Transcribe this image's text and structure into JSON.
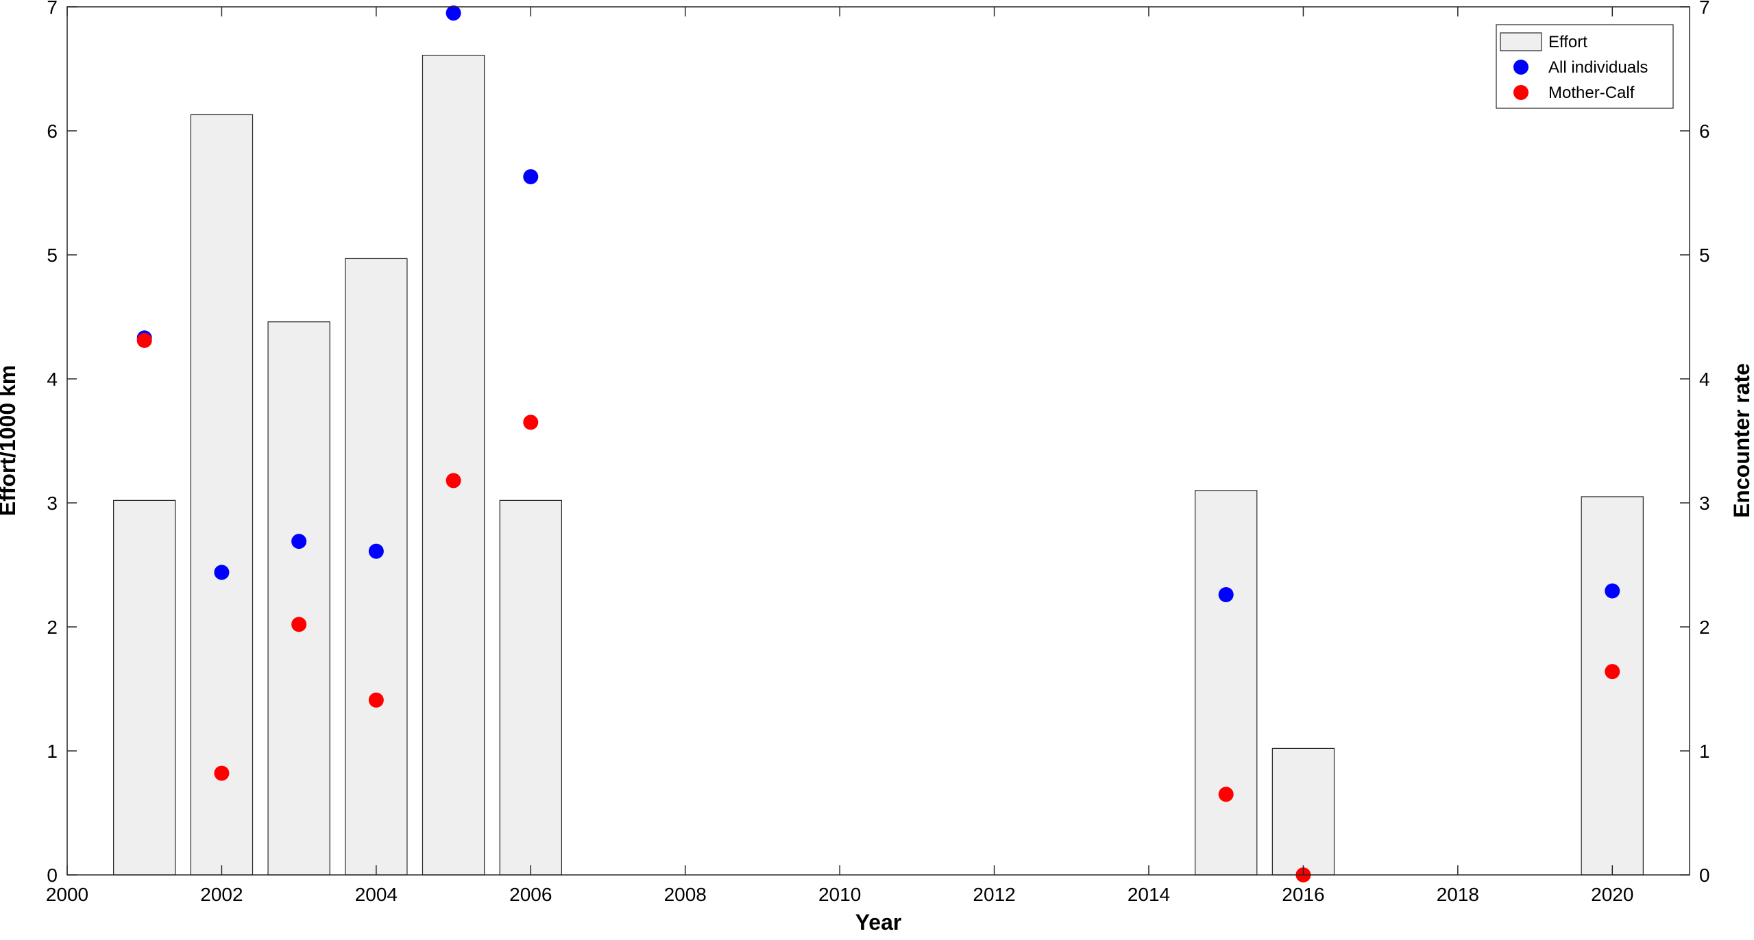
{
  "chart_data": {
    "type": "bar",
    "title": "",
    "xlabel": "Year",
    "ylabel": "Effort/1000 km",
    "ylabel_right": "Encounter rate",
    "xlim": [
      2000,
      2021
    ],
    "ylim": [
      0,
      7
    ],
    "ylim_right": [
      0,
      7
    ],
    "x_ticks": [
      "2000",
      "2002",
      "2004",
      "2006",
      "2008",
      "2010",
      "2012",
      "2014",
      "2016",
      "2018",
      "2020"
    ],
    "y_ticks": [
      "0",
      "1",
      "2",
      "3",
      "4",
      "5",
      "6",
      "7"
    ],
    "y_ticks_right": [
      "0",
      "1",
      "2",
      "3",
      "4",
      "5",
      "6",
      "7"
    ],
    "grid": false,
    "legend_position": "top-right",
    "legend": [
      "Effort",
      "All individuals",
      "Mother-Calf"
    ],
    "series": [
      {
        "name": "Effort",
        "type": "bar",
        "axis": "left",
        "color": "#efefef",
        "x": [
          2001,
          2002,
          2003,
          2004,
          2005,
          2006,
          2015,
          2016,
          2020
        ],
        "values": [
          3.02,
          6.13,
          4.46,
          4.97,
          6.61,
          3.02,
          3.1,
          1.02,
          3.05
        ]
      },
      {
        "name": "All individuals",
        "type": "scatter",
        "axis": "right",
        "color": "#0000ff",
        "x": [
          2001,
          2002,
          2003,
          2004,
          2005,
          2006,
          2015,
          2020
        ],
        "values": [
          4.33,
          2.44,
          2.69,
          2.61,
          6.95,
          5.63,
          2.26,
          2.29
        ]
      },
      {
        "name": "Mother-Calf",
        "type": "scatter",
        "axis": "right",
        "color": "#ff0000",
        "x": [
          2001,
          2002,
          2003,
          2004,
          2005,
          2006,
          2015,
          2016,
          2020
        ],
        "values": [
          4.31,
          0.82,
          2.02,
          1.41,
          3.18,
          3.65,
          0.65,
          0.0,
          1.64
        ]
      }
    ]
  }
}
